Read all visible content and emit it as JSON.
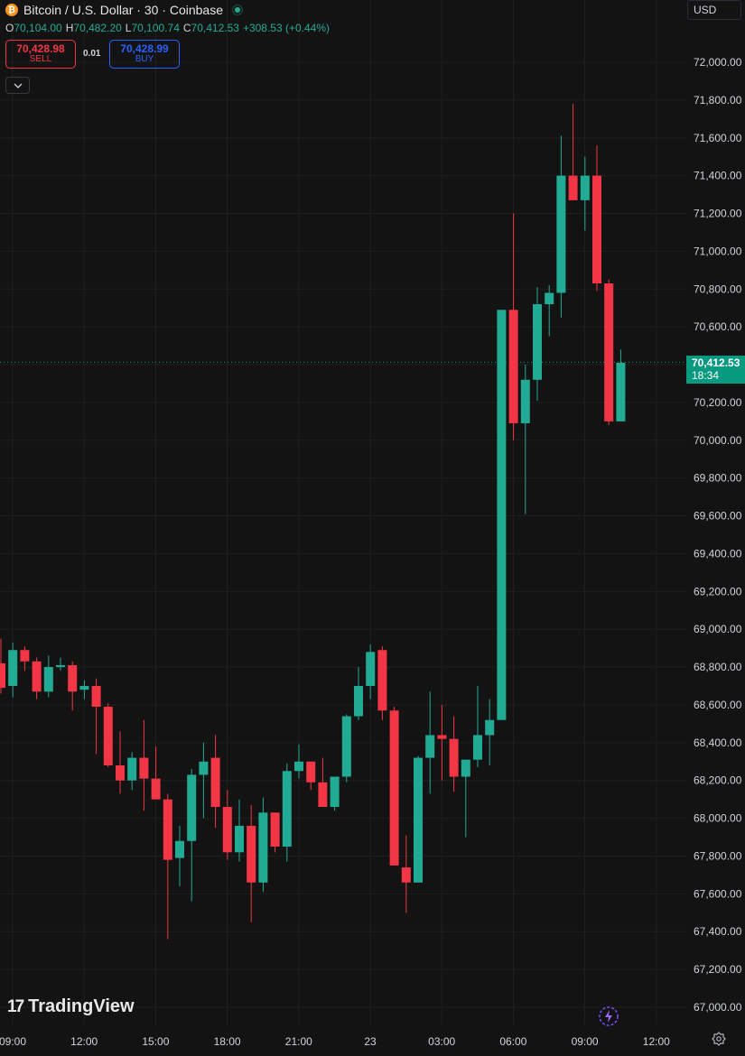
{
  "header": {
    "title": "Bitcoin / U.S. Dollar · 30 · Coinbase",
    "coin_symbol": "₿",
    "ohlc": {
      "o_label": "O",
      "o_value": "70,104.00",
      "h_label": "H",
      "h_value": "70,482.20",
      "l_label": "L",
      "l_value": "70,100.74",
      "c_label": "C",
      "c_value": "70,412.53",
      "change": "+308.53 (+0.44%)"
    }
  },
  "trade": {
    "sell_price": "70,428.98",
    "sell_label": "SELL",
    "spread": "0.01",
    "buy_price": "70,428.99",
    "buy_label": "BUY"
  },
  "currency": {
    "label": "USD",
    "icon": "chevron-down-icon"
  },
  "last_price": {
    "value": "70,412.53",
    "countdown": "18:34"
  },
  "branding": {
    "name": "TradingView",
    "mark": "17"
  },
  "colors": {
    "up": "#22ab94",
    "down": "#f23645",
    "background": "#131313",
    "grid": "#1f1f1f",
    "price_tag": "#089981"
  },
  "chart_data": {
    "type": "candlestick",
    "title": "Bitcoin / U.S. Dollar · 30 · Coinbase",
    "ylim": [
      66900,
      72100
    ],
    "y_ticks": [
      "67,000.00",
      "67,200.00",
      "67,400.00",
      "67,600.00",
      "67,800.00",
      "68,000.00",
      "68,200.00",
      "68,400.00",
      "68,600.00",
      "68,800.00",
      "69,000.00",
      "69,200.00",
      "69,400.00",
      "69,600.00",
      "69,800.00",
      "70,000.00",
      "70,200.00",
      "70,400.00",
      "70,600.00",
      "70,800.00",
      "71,000.00",
      "71,200.00",
      "71,400.00",
      "71,600.00",
      "71,800.00",
      "72,000.00"
    ],
    "x_ticks": [
      "09:00",
      "12:00",
      "15:00",
      "18:00",
      "21:00",
      "23",
      "03:00",
      "06:00",
      "09:00",
      "12:00"
    ],
    "candles": [
      {
        "o": 68820,
        "h": 68950,
        "l": 68660,
        "c": 68690
      },
      {
        "o": 68700,
        "h": 68930,
        "l": 68640,
        "c": 68890
      },
      {
        "o": 68890,
        "h": 68910,
        "l": 68780,
        "c": 68830
      },
      {
        "o": 68830,
        "h": 68850,
        "l": 68630,
        "c": 68670
      },
      {
        "o": 68670,
        "h": 68860,
        "l": 68640,
        "c": 68800
      },
      {
        "o": 68800,
        "h": 68850,
        "l": 68780,
        "c": 68810
      },
      {
        "o": 68810,
        "h": 68830,
        "l": 68570,
        "c": 68670
      },
      {
        "o": 68680,
        "h": 68730,
        "l": 68630,
        "c": 68700
      },
      {
        "o": 68700,
        "h": 68740,
        "l": 68340,
        "c": 68590
      },
      {
        "o": 68590,
        "h": 68610,
        "l": 68270,
        "c": 68280
      },
      {
        "o": 68280,
        "h": 68460,
        "l": 68130,
        "c": 68200
      },
      {
        "o": 68200,
        "h": 68350,
        "l": 68150,
        "c": 68320
      },
      {
        "o": 68320,
        "h": 68520,
        "l": 68040,
        "c": 68210
      },
      {
        "o": 68210,
        "h": 68380,
        "l": 68100,
        "c": 68100
      },
      {
        "o": 68100,
        "h": 68130,
        "l": 67360,
        "c": 67780
      },
      {
        "o": 67790,
        "h": 67960,
        "l": 67640,
        "c": 67880
      },
      {
        "o": 67880,
        "h": 68260,
        "l": 67560,
        "c": 68230
      },
      {
        "o": 68230,
        "h": 68400,
        "l": 68000,
        "c": 68300
      },
      {
        "o": 68320,
        "h": 68440,
        "l": 67950,
        "c": 68060
      },
      {
        "o": 68060,
        "h": 68150,
        "l": 67780,
        "c": 67820
      },
      {
        "o": 67820,
        "h": 68100,
        "l": 67770,
        "c": 67960
      },
      {
        "o": 67960,
        "h": 68070,
        "l": 67450,
        "c": 67660
      },
      {
        "o": 67660,
        "h": 68110,
        "l": 67610,
        "c": 68030
      },
      {
        "o": 68030,
        "h": 68030,
        "l": 67820,
        "c": 67850
      },
      {
        "o": 67850,
        "h": 68290,
        "l": 67770,
        "c": 68250
      },
      {
        "o": 68250,
        "h": 68390,
        "l": 68210,
        "c": 68300
      },
      {
        "o": 68300,
        "h": 68300,
        "l": 68150,
        "c": 68190
      },
      {
        "o": 68190,
        "h": 68320,
        "l": 68070,
        "c": 68060
      },
      {
        "o": 68060,
        "h": 68210,
        "l": 68040,
        "c": 68220
      },
      {
        "o": 68220,
        "h": 68550,
        "l": 68190,
        "c": 68540
      },
      {
        "o": 68540,
        "h": 68800,
        "l": 68520,
        "c": 68700
      },
      {
        "o": 68700,
        "h": 68920,
        "l": 68630,
        "c": 68880
      },
      {
        "o": 68890,
        "h": 68910,
        "l": 68520,
        "c": 68570
      },
      {
        "o": 68570,
        "h": 68590,
        "l": 67750,
        "c": 67750
      },
      {
        "o": 67740,
        "h": 67910,
        "l": 67500,
        "c": 67660
      },
      {
        "o": 67660,
        "h": 68330,
        "l": 67660,
        "c": 68320
      },
      {
        "o": 68320,
        "h": 68670,
        "l": 68130,
        "c": 68440
      },
      {
        "o": 68440,
        "h": 68600,
        "l": 68200,
        "c": 68420
      },
      {
        "o": 68420,
        "h": 68540,
        "l": 68140,
        "c": 68220
      },
      {
        "o": 68220,
        "h": 68310,
        "l": 67900,
        "c": 68310
      },
      {
        "o": 68310,
        "h": 68700,
        "l": 68270,
        "c": 68440
      },
      {
        "o": 68440,
        "h": 68630,
        "l": 68280,
        "c": 68520
      },
      {
        "o": 68520,
        "h": 70680,
        "l": 68520,
        "c": 70690
      },
      {
        "o": 70690,
        "h": 71200,
        "l": 70000,
        "c": 70090
      },
      {
        "o": 70090,
        "h": 70400,
        "l": 69610,
        "c": 70320
      },
      {
        "o": 70320,
        "h": 70810,
        "l": 70210,
        "c": 70720
      },
      {
        "o": 70720,
        "h": 70820,
        "l": 70550,
        "c": 70780
      },
      {
        "o": 70780,
        "h": 71610,
        "l": 70650,
        "c": 71400
      },
      {
        "o": 71400,
        "h": 71780,
        "l": 71310,
        "c": 71270
      },
      {
        "o": 71270,
        "h": 71500,
        "l": 71110,
        "c": 71400
      },
      {
        "o": 71400,
        "h": 71560,
        "l": 70790,
        "c": 70830
      },
      {
        "o": 70830,
        "h": 70850,
        "l": 70080,
        "c": 70100
      },
      {
        "o": 70100,
        "h": 70480,
        "l": 70100,
        "c": 70410
      }
    ]
  }
}
